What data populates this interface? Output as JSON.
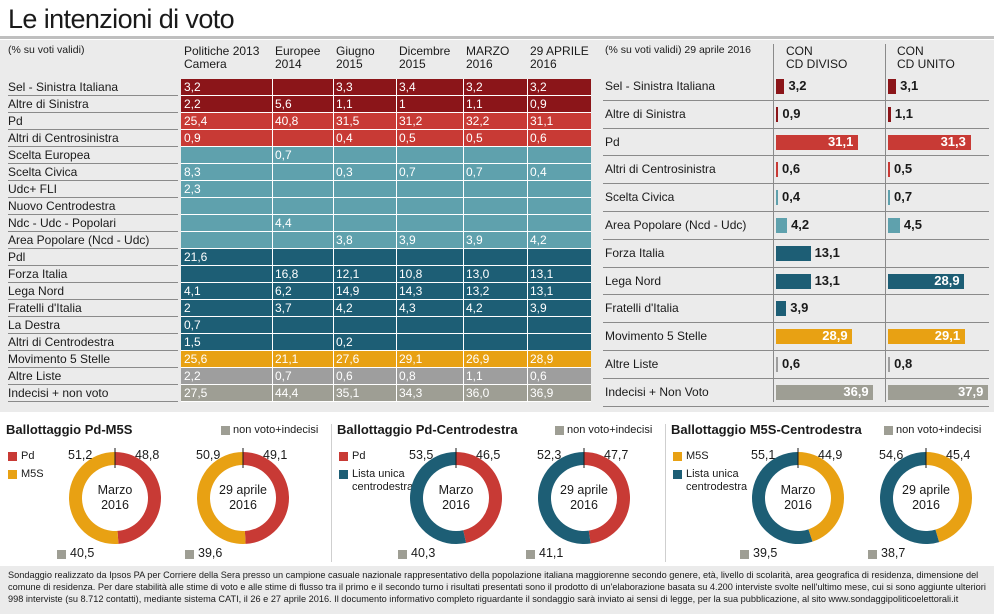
{
  "title": "Le intenzioni di voto",
  "left": {
    "note": "(% su voti validi)",
    "columns": [
      "Politiche 2013\nCamera",
      "Europee\n2014",
      "Giugno\n2015",
      "Dicembre\n2015",
      "MARZO\n2016",
      "29 APRILE\n2016"
    ],
    "rows": [
      {
        "label": "Sel - Sinistra Italiana",
        "color": "#8b1519",
        "values": [
          "3,2",
          "",
          "3,3",
          "3,4",
          "3,2",
          "3,2"
        ]
      },
      {
        "label": "Altre di Sinistra",
        "color": "#8b1519",
        "values": [
          "2,2",
          "5,6",
          "1,1",
          "1",
          "1,1",
          "0,9"
        ]
      },
      {
        "label": "Pd",
        "color": "#c83a35",
        "values": [
          "25,4",
          "40,8",
          "31,5",
          "31,2",
          "32,2",
          "31,1"
        ]
      },
      {
        "label": "Altri di Centrosinistra",
        "color": "#c83a35",
        "values": [
          "0,9",
          "",
          "0,4",
          "0,5",
          "0,5",
          "0,6"
        ]
      },
      {
        "label": "Scelta Europea",
        "color": "#5fa1ad",
        "values": [
          "",
          "0,7",
          "",
          "",
          "",
          ""
        ]
      },
      {
        "label": "Scelta Civica",
        "color": "#5fa1ad",
        "values": [
          "8,3",
          "",
          "0,3",
          "0,7",
          "0,7",
          "0,4"
        ]
      },
      {
        "label": "Udc+ FLI",
        "color": "#5fa1ad",
        "values": [
          "2,3",
          "",
          "",
          "",
          "",
          ""
        ]
      },
      {
        "label": "Nuovo Centrodestra",
        "color": "#5fa1ad",
        "values": [
          "",
          "",
          "",
          "",
          "",
          ""
        ]
      },
      {
        "label": "Ndc - Udc - Popolari",
        "color": "#5fa1ad",
        "values": [
          "",
          "4,4",
          "",
          "",
          "",
          ""
        ]
      },
      {
        "label": "Area Popolare (Ncd - Udc)",
        "color": "#5fa1ad",
        "values": [
          "",
          "",
          "3,8",
          "3,9",
          "3,9",
          "4,2"
        ]
      },
      {
        "label": "Pdl",
        "color": "#1d5e75",
        "values": [
          "21,6",
          "",
          "",
          "",
          "",
          ""
        ]
      },
      {
        "label": "Forza Italia",
        "color": "#1d5e75",
        "values": [
          "",
          "16,8",
          "12,1",
          "10,8",
          "13,0",
          "13,1"
        ]
      },
      {
        "label": "Lega Nord",
        "color": "#1d5e75",
        "values": [
          "4,1",
          "6,2",
          "14,9",
          "14,3",
          "13,2",
          "13,1"
        ]
      },
      {
        "label": "Fratelli d'Italia",
        "color": "#1d5e75",
        "values": [
          "2",
          "3,7",
          "4,2",
          "4,3",
          "4,2",
          "3,9"
        ]
      },
      {
        "label": "La Destra",
        "color": "#1d5e75",
        "values": [
          "0,7",
          "",
          "",
          "",
          "",
          ""
        ]
      },
      {
        "label": "Altri di Centrodestra",
        "color": "#1d5e75",
        "values": [
          "1,5",
          "",
          "0,2",
          "",
          "",
          ""
        ]
      },
      {
        "label": "Movimento 5 Stelle",
        "color": "#e8a113",
        "values": [
          "25,6",
          "21,1",
          "27,6",
          "29,1",
          "26,9",
          "28,9"
        ]
      },
      {
        "label": "Altre Liste",
        "color": "#9e9e9e",
        "values": [
          "2,2",
          "0,7",
          "0,6",
          "0,8",
          "1,1",
          "0,6"
        ]
      },
      {
        "label": "Indecisi + non voto",
        "color": "#9e9e94",
        "values": [
          "27,5",
          "44,4",
          "35,1",
          "34,3",
          "36,0",
          "36,9"
        ]
      }
    ]
  },
  "right": {
    "note": "(% su voti validi) 29 aprile 2016",
    "col1": "CON\nCD DIVISO",
    "col2": "CON\nCD UNITO",
    "rows": [
      {
        "label": "Sel - Sinistra Italiana",
        "color": "#8b1519",
        "a": 3.2,
        "a_label": "3,2",
        "b": 3.1,
        "b_label": "3,1"
      },
      {
        "label": "Altre di Sinistra",
        "color": "#8b1519",
        "a": 0.9,
        "a_label": "0,9",
        "b": 1.1,
        "b_label": "1,1"
      },
      {
        "label": "Pd",
        "color": "#c83a35",
        "a": 31.1,
        "a_label": "31,1",
        "b": 31.3,
        "b_label": "31,3"
      },
      {
        "label": "Altri di Centrosinistra",
        "color": "#c83a35",
        "a": 0.6,
        "a_label": "0,6",
        "b": 0.5,
        "b_label": "0,5"
      },
      {
        "label": "Scelta Civica",
        "color": "#5fa1ad",
        "a": 0.4,
        "a_label": "0,4",
        "b": 0.7,
        "b_label": "0,7"
      },
      {
        "label": "Area Popolare (Ncd - Udc)",
        "color": "#5fa1ad",
        "a": 4.2,
        "a_label": "4,2",
        "b": 4.5,
        "b_label": "4,5"
      },
      {
        "label": "Forza Italia",
        "color": "#1d5e75",
        "a": 13.1,
        "a_label": "13,1",
        "b": null,
        "b_label": ""
      },
      {
        "label": "Lega Nord",
        "color": "#1d5e75",
        "a": 13.1,
        "a_label": "13,1",
        "b": 28.9,
        "b_label": "28,9"
      },
      {
        "label": "Fratelli d'Italia",
        "color": "#1d5e75",
        "a": 3.9,
        "a_label": "3,9",
        "b": null,
        "b_label": ""
      },
      {
        "label": "Movimento 5 Stelle",
        "color": "#e8a113",
        "a": 28.9,
        "a_label": "28,9",
        "b": 29.1,
        "b_label": "29,1"
      },
      {
        "label": "Altre Liste",
        "color": "#9e9e9e",
        "a": 0.6,
        "a_label": "0,6",
        "b": 0.8,
        "b_label": "0,8"
      },
      {
        "label": "Indecisi + Non Voto",
        "color": "#9e9e94",
        "a": 36.9,
        "a_label": "36,9",
        "b": 37.9,
        "b_label": "37,9"
      }
    ]
  },
  "ballots": [
    {
      "title": "Ballottaggio Pd-M5S",
      "nonvoto_label": "non voto+indecisi",
      "legend": [
        {
          "label": "Pd",
          "color": "#c83a35"
        },
        {
          "label": "M5S",
          "color": "#e8a113"
        }
      ],
      "donuts": [
        {
          "center": "Marzo\n2016",
          "left_value": 51.2,
          "left_label": "51,2",
          "right_value": 48.8,
          "right_label": "48,8",
          "left_color": "#e8a113",
          "right_color": "#c83a35",
          "nonvoto": "40,5"
        },
        {
          "center": "29 aprile\n2016",
          "left_value": 50.9,
          "left_label": "50,9",
          "right_value": 49.1,
          "right_label": "49,1",
          "left_color": "#e8a113",
          "right_color": "#c83a35",
          "nonvoto": "39,6"
        }
      ]
    },
    {
      "title": "Ballottaggio Pd-Centrodestra",
      "nonvoto_label": "non voto+indecisi",
      "legend": [
        {
          "label": "Pd",
          "color": "#c83a35"
        },
        {
          "label": "Lista unica\ncentrodestra",
          "color": "#1d5e75"
        }
      ],
      "donuts": [
        {
          "center": "Marzo\n2016",
          "left_value": 53.5,
          "left_label": "53,5",
          "right_value": 46.5,
          "right_label": "46,5",
          "left_color": "#1d5e75",
          "right_color": "#c83a35",
          "nonvoto": "40,3"
        },
        {
          "center": "29 aprile\n2016",
          "left_value": 52.3,
          "left_label": "52,3",
          "right_value": 47.7,
          "right_label": "47,7",
          "left_color": "#1d5e75",
          "right_color": "#c83a35",
          "nonvoto": "41,1"
        }
      ]
    },
    {
      "title": "Ballottaggio M5S-Centrodestra",
      "nonvoto_label": "non voto+indecisi",
      "legend": [
        {
          "label": "M5S",
          "color": "#e8a113"
        },
        {
          "label": "Lista unica\ncentrodestra",
          "color": "#1d5e75"
        }
      ],
      "donuts": [
        {
          "center": "Marzo\n2016",
          "left_value": 55.1,
          "left_label": "55,1",
          "right_value": 44.9,
          "right_label": "44,9",
          "left_color": "#1d5e75",
          "right_color": "#e8a113",
          "nonvoto": "39,5"
        },
        {
          "center": "29 aprile\n2016",
          "left_value": 54.6,
          "left_label": "54,6",
          "right_value": 45.4,
          "right_label": "45,4",
          "left_color": "#1d5e75",
          "right_color": "#e8a113",
          "nonvoto": "38,7"
        }
      ]
    }
  ],
  "nonvoto_color": "#9e9e94",
  "footer": "Sondaggio realizzato da Ipsos PA per Corriere della Sera presso un campione casuale nazionale rappresentativo della popolazione italiana maggiorenne secondo genere, età, livello di scolarità, area geografica di residenza, dimensione del comune di residenza. Per dare stabilità alle stime di voto e alle stime di flusso tra il primo e il secondo turno i risultati presentati sono il prodotto di un'elaborazione basata su 4.200 interviste svolte nell'ultimo mese, cui si sono aggiunte ulteriori 998 interviste (su 8.712 contatti), mediante sistema CATI, il 26 e 27 aprile 2016. Il documento informativo completo riguardante il sondaggio sarà inviato ai sensi di legge, per la sua pubblicazione, al sito www.sondaggipoliticoelettorali.it",
  "chart_data": {
    "type": "bar",
    "left_table": "see left.rows",
    "right_bars": "see right.rows",
    "donuts": "see ballots"
  }
}
